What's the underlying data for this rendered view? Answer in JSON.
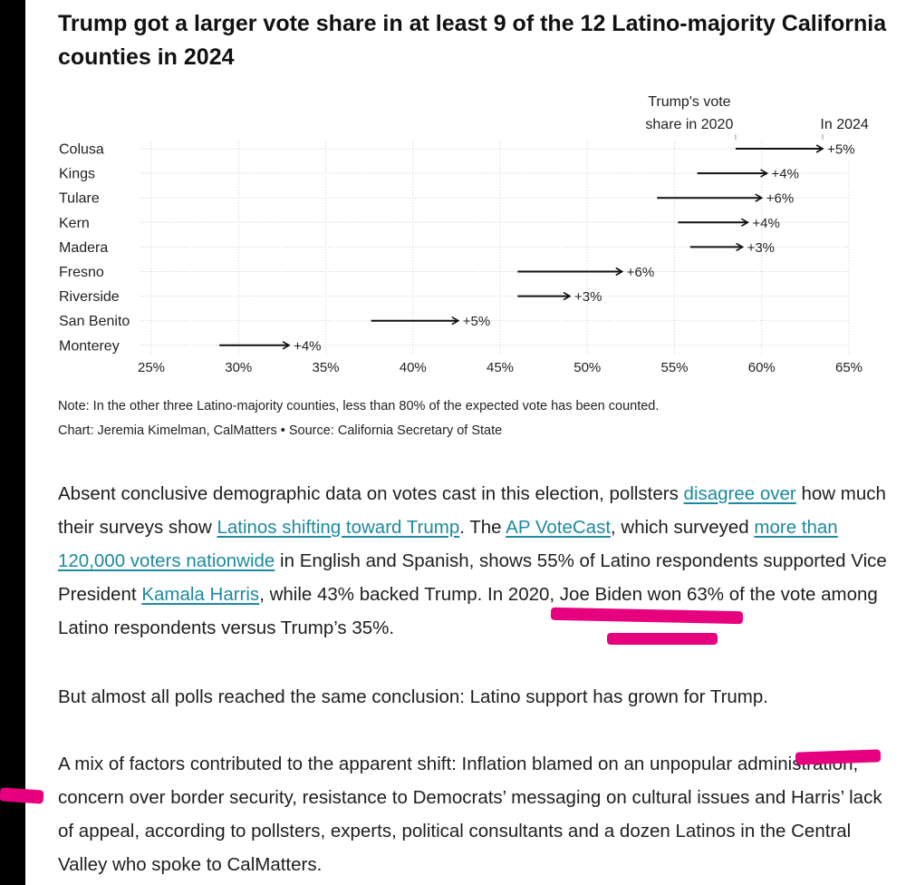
{
  "title": "Trump got a larger vote share in at least 9 of the 12 Latino-majority California counties in 2024",
  "chart_data": {
    "type": "arrow-dot",
    "title": "Trump got a larger vote share in at least 9 of the 12 Latino-majority California counties in 2024",
    "legend": {
      "start_label_line1": "Trump's vote",
      "start_label_line2": "share in 2020",
      "end_label": "In 2024"
    },
    "x_ticks": [
      25,
      30,
      35,
      40,
      45,
      50,
      55,
      60,
      65
    ],
    "x_tick_labels": [
      "25%",
      "30%",
      "35%",
      "40%",
      "45%",
      "50%",
      "55%",
      "60%",
      "65%"
    ],
    "xlim": [
      25,
      65
    ],
    "rows": [
      {
        "county": "Colusa",
        "v2020": 58.5,
        "v2024": 63.5,
        "change_label": "+5%"
      },
      {
        "county": "Kings",
        "v2020": 56.3,
        "v2024": 60.3,
        "change_label": "+4%"
      },
      {
        "county": "Tulare",
        "v2020": 54.0,
        "v2024": 60.0,
        "change_label": "+6%"
      },
      {
        "county": "Kern",
        "v2020": 55.2,
        "v2024": 59.2,
        "change_label": "+4%"
      },
      {
        "county": "Madera",
        "v2020": 55.9,
        "v2024": 58.9,
        "change_label": "+3%"
      },
      {
        "county": "Fresno",
        "v2020": 46.0,
        "v2024": 52.0,
        "change_label": "+6%"
      },
      {
        "county": "Riverside",
        "v2020": 46.0,
        "v2024": 49.0,
        "change_label": "+3%"
      },
      {
        "county": "San Benito",
        "v2020": 37.6,
        "v2024": 42.6,
        "change_label": "+5%"
      },
      {
        "county": "Monterey",
        "v2020": 28.9,
        "v2024": 32.9,
        "change_label": "+4%"
      }
    ]
  },
  "note": "Note: In the other three Latino-majority counties, less than 80% of the expected vote has been counted.",
  "credit": "Chart: Jeremia Kimelman, CalMatters • Source: California Secretary of State",
  "paragraph1": {
    "t1": "Absent conclusive demographic data on votes cast in this election, pollsters ",
    "link1": "disagree over",
    "t2": " how much their surveys show ",
    "link2": "Latinos shifting toward Trump",
    "t3": ". The ",
    "link3": "AP VoteCast",
    "t4": ", which surveyed ",
    "link4": "more than 120,000 voters nationwide",
    "t5": " in English and Spanish, shows 55% of Latino respondents supported Vice President ",
    "link5": "Kamala Harris",
    "t6": ", while 43% backed Trump. In 2020, Joe Biden won 63% of the vote among Latino respondents versus Trump’s 35%."
  },
  "paragraph2": "But almost all polls reached the same conclusion: Latino support has grown for Trump.",
  "paragraph3": "A mix of factors contributed to the apparent shift: Inflation blamed on an unpopular administration, concern over border security, resistance to Democrats’ messaging on cultural issues and Harris’ lack of appeal, according to pollsters, experts, political consultants and a dozen Latinos in the Central Valley who spoke to CalMatters.",
  "colors": {
    "highlight": "#e6007e",
    "link": "#1d8aa0",
    "arrow": "#111111"
  }
}
